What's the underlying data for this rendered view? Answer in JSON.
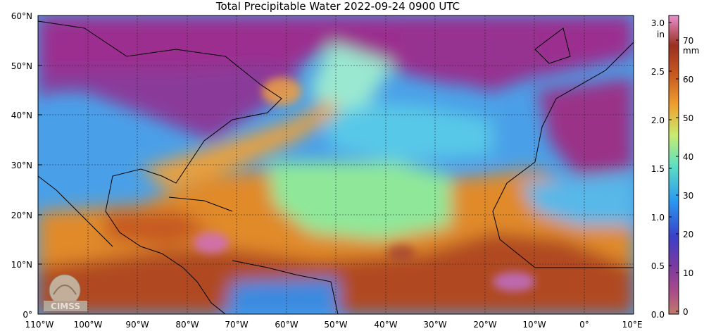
{
  "title": "Total Precipitable Water  2022-09-24 0900 UTC",
  "map": {
    "lat_labels": [
      "60°N",
      "50°N",
      "40°N",
      "30°N",
      "20°N",
      "10°N",
      "0°"
    ],
    "lon_labels": [
      "110°W",
      "100°W",
      "90°W",
      "80°W",
      "70°W",
      "60°W",
      "50°W",
      "40°W",
      "30°W",
      "20°W",
      "10°W",
      "0°",
      "10°E"
    ],
    "logo_text": "CIMSS"
  },
  "colorbar": {
    "unit_in": "in",
    "unit_mm": "mm",
    "in_ticks": [
      "3.0",
      "2.5",
      "2.0",
      "1.5",
      "1.0",
      "0.5",
      "0.0"
    ],
    "mm_ticks": [
      "70",
      "60",
      "50",
      "40",
      "30",
      "20",
      "10",
      "0"
    ]
  },
  "colors": {
    "dry": "#9b2f8f",
    "low": "#3a7fe0",
    "mid": "#70e8a8",
    "high": "#e08a2a",
    "very_high": "#b04a20"
  }
}
